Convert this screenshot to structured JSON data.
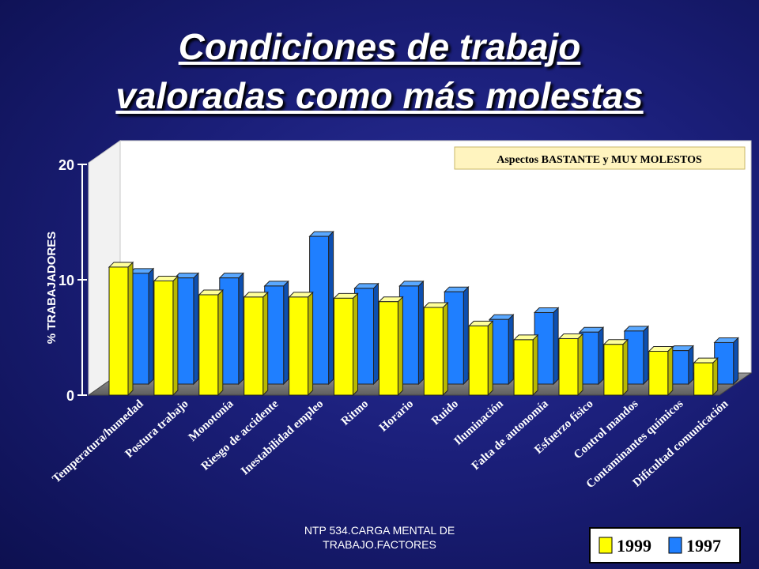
{
  "slide": {
    "title_line1": "Condiciones de trabajo",
    "title_line2": "valoradas como más molestas",
    "footer_line1": "NTP 534.CARGA MENTAL DE",
    "footer_line2": "TRABAJO.FACTORES"
  },
  "colors": {
    "background": "#1b1f7a",
    "series_1999": "#ffff00",
    "series_1997": "#1f7fff",
    "floor": "#7a7a7a",
    "wall": "#ffffff",
    "annotation_bg": "#fff4bf"
  },
  "chart_data": {
    "type": "bar",
    "annotation": "Aspectos BASTANTE y MUY MOLESTOS",
    "ylabel": "% TRABAJADORES",
    "xlabel": "",
    "ylim": [
      0,
      20
    ],
    "yticks": [
      "0",
      "10",
      "20"
    ],
    "grid": false,
    "legend_position": "bottom-right",
    "categories": [
      "Temperatura/humedad",
      "Postura trabajo",
      "Monotonía",
      "Riesgo de accidente",
      "Inestabilidad empleo",
      "Ritmo",
      "Horario",
      "Ruido",
      "Iluminación",
      "Falta de autonomía",
      "Esfuerzo físico",
      "Control mandos",
      "Contaminantes químicos",
      "Dificultad comunicación"
    ],
    "series": [
      {
        "name": "1999",
        "color": "#ffff00",
        "values": [
          11.1,
          9.9,
          8.7,
          8.5,
          8.5,
          8.4,
          8.1,
          7.6,
          6.0,
          4.8,
          4.9,
          4.4,
          3.8,
          2.8
        ]
      },
      {
        "name": "1997",
        "color": "#1f7fff",
        "values": [
          9.6,
          9.2,
          9.2,
          8.5,
          12.8,
          8.3,
          8.5,
          8.0,
          5.6,
          6.2,
          4.5,
          4.6,
          2.9,
          3.6
        ]
      }
    ]
  }
}
